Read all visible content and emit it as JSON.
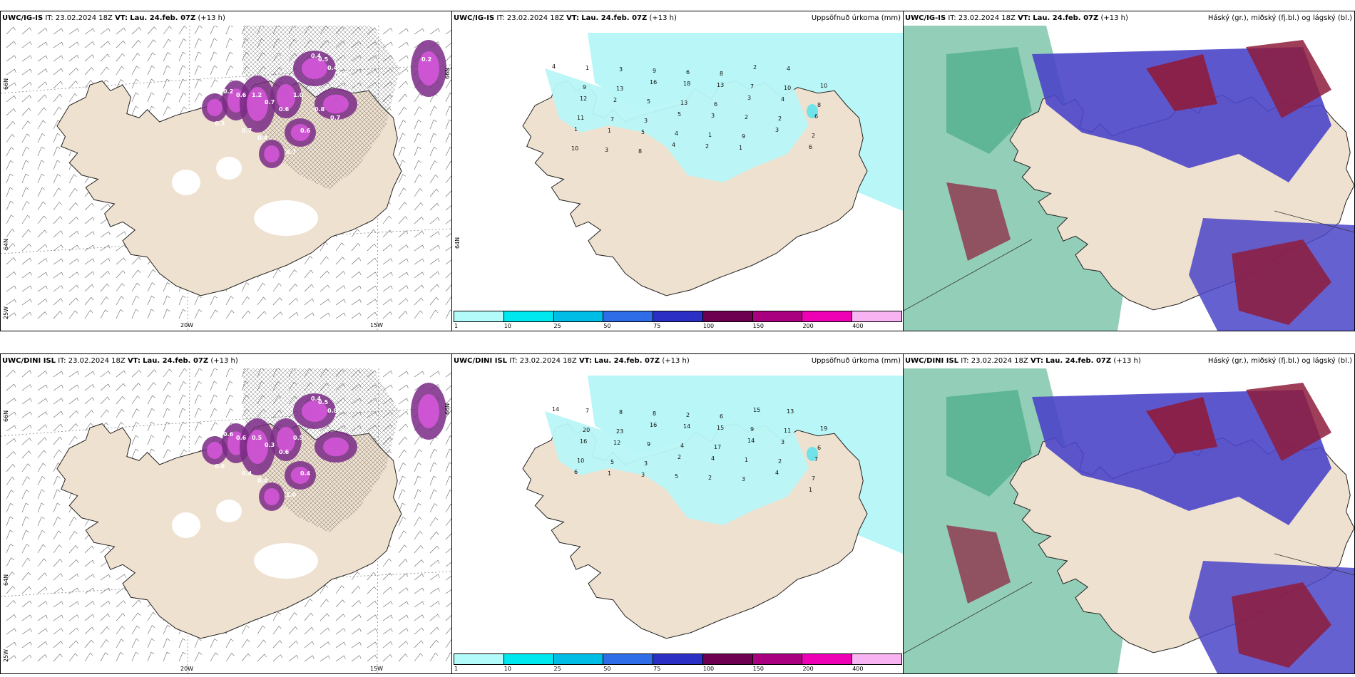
{
  "panels": [
    {
      "model": "UWC/IG-IS",
      "it_label": "IT:",
      "it": "23.02.2024 18Z",
      "vt_label": "VT:",
      "vt": "Lau. 24.feb. 07Z",
      "lead": "(+13 h)",
      "right_title": "",
      "type": "wind",
      "lon_labels": [
        "20W",
        "15W"
      ],
      "lat_labels": [
        "66N",
        "64N",
        "25W",
        "66N"
      ],
      "values": [
        "0.4",
        "0.5",
        "0.4",
        "0.7",
        "0.2",
        "0.6",
        "1.2",
        "0.7",
        "0.6",
        "1.0",
        "0.3",
        "0.7",
        "0.4",
        "0.7",
        "0.6",
        "0.8",
        "0.7",
        "0.2",
        "0.6"
      ]
    },
    {
      "model": "UWC/IG-IS",
      "it_label": "IT:",
      "it": "23.02.2024 18Z",
      "vt_label": "VT:",
      "vt": "Lau. 24.feb. 07Z",
      "lead": "(+13 h)",
      "right_title": "Uppsöfnuð úrkoma (mm)",
      "type": "precip",
      "side_label": "64N",
      "values": [
        "4",
        "1",
        "3",
        "9",
        "6",
        "8",
        "2",
        "4",
        "10",
        "9",
        "13",
        "16",
        "18",
        "13",
        "7",
        "10",
        "8",
        "12",
        "2",
        "5",
        "13",
        "6",
        "3",
        "4",
        "6",
        "11",
        "7",
        "3",
        "5",
        "3",
        "2",
        "2",
        "2",
        "1",
        "1",
        "5",
        "4",
        "1",
        "9",
        "3",
        "6",
        "10",
        "3",
        "8",
        "4",
        "2",
        "1"
      ]
    },
    {
      "model": "UWC/IG-IS",
      "it_label": "IT:",
      "it": "23.02.2024 18Z",
      "vt_label": "VT:",
      "vt": "Lau. 24.feb. 07Z",
      "lead": "(+13 h)",
      "right_title": "Háský (gr.), miðský (fj.bl.) og lágský (bl.)",
      "type": "cloud"
    },
    {
      "model": "UWC/DINI ISL",
      "it_label": "IT:",
      "it": "23.02.2024 18Z",
      "vt_label": "VT:",
      "vt": "Lau. 24.feb. 07Z",
      "lead": "(+13 h)",
      "right_title": "",
      "type": "wind",
      "lon_labels": [
        "20W",
        "15W"
      ],
      "lat_labels": [
        "66N",
        "64N",
        "25W",
        "66N"
      ],
      "values": [
        "0.4",
        "0.5",
        "0.8",
        "1.0",
        "0.6",
        "0.6",
        "0.5",
        "0.3",
        "0.6",
        "0.5",
        "0.6",
        "0.4",
        "0.4",
        "1.0",
        "0.4"
      ]
    },
    {
      "model": "UWC/DINI ISL",
      "it_label": "IT:",
      "it": "23.02.2024 18Z",
      "vt_label": "VT:",
      "vt": "Lau. 24.feb. 07Z",
      "lead": "(+13 h)",
      "right_title": "Uppsöfnuð úrkoma (mm)",
      "type": "precip",
      "side_label": "",
      "values": [
        "14",
        "7",
        "8",
        "8",
        "2",
        "6",
        "15",
        "13",
        "19",
        "20",
        "23",
        "16",
        "14",
        "15",
        "9",
        "11",
        "6",
        "16",
        "12",
        "9",
        "4",
        "17",
        "14",
        "3",
        "7",
        "10",
        "5",
        "3",
        "2",
        "4",
        "1",
        "2",
        "7",
        "6",
        "1",
        "3",
        "5",
        "2",
        "3",
        "4",
        "1"
      ]
    },
    {
      "model": "UWC/DINI ISL",
      "it_label": "IT:",
      "it": "23.02.2024 18Z",
      "vt_label": "VT:",
      "vt": "Lau. 24.feb. 07Z",
      "lead": "(+13 h)",
      "right_title": "Háský (gr.), miðský (fj.bl.) og lágský (bl.)",
      "type": "cloud"
    }
  ],
  "colorbar": {
    "ticks": [
      "1",
      "10",
      "25",
      "50",
      "75",
      "100",
      "150",
      "200",
      "400"
    ],
    "colors": [
      "#b3fbfb",
      "#00e8ef",
      "#00bde6",
      "#2f6ce8",
      "#2c2fc3",
      "#6d0050",
      "#a8007f",
      "#ee00b5",
      "#f7b3f2"
    ]
  },
  "colors": {
    "land": "#efe1cf",
    "precip_light": "#b8f6f7",
    "wind_purple": "#7a2a86",
    "wind_magenta": "#d455d8",
    "cloud_blue": "#4b45c8",
    "cloud_green": "#3aa67e",
    "cloud_red": "#8e1c3c"
  }
}
